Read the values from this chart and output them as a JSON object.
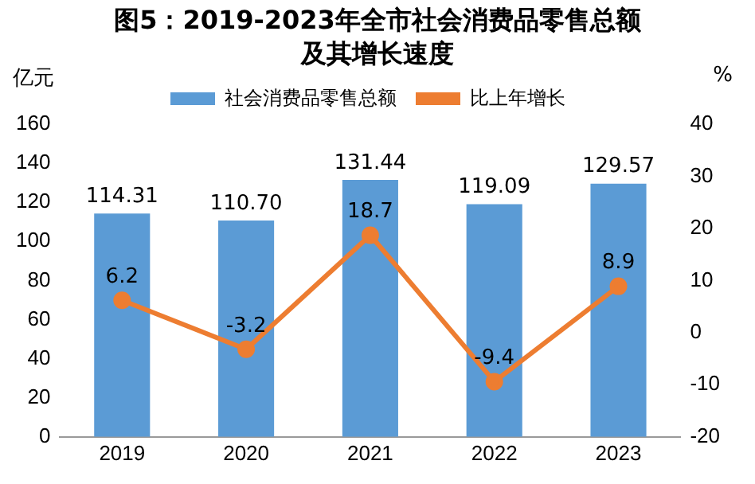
{
  "chart_data": {
    "type": "bar",
    "title": "图5：2019-2023年全市社会消费品零售总额及其增长速度",
    "ylabel": "亿元",
    "y2label": "%",
    "categories": [
      "2019",
      "2020",
      "2021",
      "2022",
      "2023"
    ],
    "series": [
      {
        "name": "社会消费品零售总额",
        "color": "#5b9bd5",
        "values": [
          114.31,
          110.7,
          131.44,
          119.09,
          129.57
        ],
        "value_labels": [
          "114.31",
          "110.70",
          "131.44",
          "119.09",
          "129.57"
        ]
      },
      {
        "name": "比上年增长",
        "type": "line",
        "axis": "y2",
        "color": "#ed7d31",
        "marker": "circle",
        "values": [
          6.2,
          -3.2,
          18.7,
          -9.4,
          8.9
        ],
        "value_labels": [
          "6.2",
          "-3.2",
          "18.7",
          "-9.4",
          "8.9"
        ]
      }
    ],
    "ylim": [
      0,
      160
    ],
    "yticks": [
      0,
      20,
      40,
      60,
      80,
      100,
      120,
      140,
      160
    ],
    "y2lim": [
      -20,
      40
    ],
    "y2ticks": [
      -20,
      -10,
      0,
      10,
      20,
      30,
      40
    ],
    "grid": false,
    "legend": "top"
  }
}
